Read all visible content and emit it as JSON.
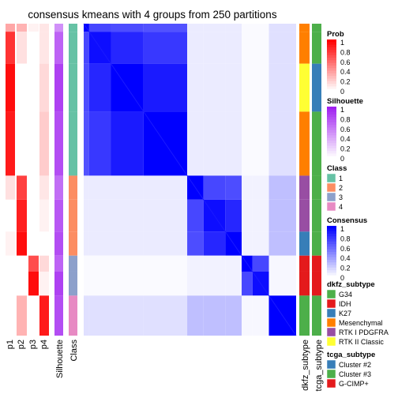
{
  "chart_data": {
    "type": "heatmap",
    "title": "consensus kmeans with 4 groups from 250 partitions",
    "row_groups": [
      {
        "class": "1",
        "rel_size": 19
      },
      {
        "class": "2",
        "rel_size": 10
      },
      {
        "class": "3",
        "rel_size": 5
      },
      {
        "class": "4",
        "rel_size": 5
      }
    ],
    "sub_blocks": [
      {
        "group": "1",
        "size": 1,
        "dkfz": "Mesenchymal",
        "tcga": "Cluster #3",
        "prob": [
          0.35,
          0.3,
          0.05,
          0.1
        ],
        "silhouette": 0.5
      },
      {
        "group": "1",
        "size": 4,
        "dkfz": "Mesenchymal",
        "tcga": "Cluster #3",
        "prob": [
          0.8,
          0.12,
          0.0,
          0.1
        ],
        "silhouette": 0.7
      },
      {
        "group": "1",
        "size": 6,
        "dkfz": "RTK II Classic",
        "tcga": "Cluster #2",
        "prob": [
          0.95,
          0.0,
          0.0,
          0.15
        ],
        "silhouette": 0.85
      },
      {
        "group": "1",
        "size": 8,
        "dkfz": "Mesenchymal",
        "tcga": "Cluster #3",
        "prob": [
          0.9,
          0.0,
          0.0,
          0.2
        ],
        "silhouette": 0.8
      },
      {
        "group": "2",
        "size": 3,
        "dkfz": "RTK I PDGFRA",
        "tcga": "Cluster #3",
        "prob": [
          0.12,
          0.75,
          0.0,
          0.1
        ],
        "silhouette": 0.65
      },
      {
        "group": "2",
        "size": 4,
        "dkfz": "RTK I PDGFRA",
        "tcga": "Cluster #3",
        "prob": [
          0.0,
          0.88,
          0.0,
          0.05
        ],
        "silhouette": 0.75
      },
      {
        "group": "2",
        "size": 3,
        "dkfz": "K27",
        "tcga": "Cluster #3",
        "prob": [
          0.05,
          0.95,
          0.0,
          0.0
        ],
        "silhouette": 0.8
      },
      {
        "group": "3",
        "size": 2,
        "dkfz": "IDH",
        "tcga": "G-CIMP+",
        "prob": [
          0.0,
          0.0,
          0.7,
          0.15
        ],
        "silhouette": 0.7
      },
      {
        "group": "3",
        "size": 3,
        "dkfz": "IDH",
        "tcga": "G-CIMP+",
        "prob": [
          0.0,
          0.0,
          0.95,
          0.05
        ],
        "silhouette": 0.85
      },
      {
        "group": "4",
        "size": 5,
        "dkfz": "G34",
        "tcga": "Cluster #3",
        "prob": [
          0.0,
          0.3,
          0.0,
          0.9
        ],
        "silhouette": 0.8
      }
    ],
    "within_consensus": [
      [
        1.0,
        0.72,
        0.7,
        0.68
      ],
      [
        0.72,
        0.95,
        0.85,
        0.78
      ],
      [
        0.7,
        0.85,
        1.0,
        0.9
      ],
      [
        0.68,
        0.78,
        0.9,
        1.0
      ]
    ],
    "between_consensus": {
      "1-2": 0.08,
      "1-3": 0.02,
      "1-4": 0.12,
      "2-3": 0.05,
      "2-4": 0.25,
      "3-4": 0.03
    },
    "annotation_labels": [
      "p1",
      "p2",
      "p3",
      "p4",
      "Silhouette",
      "Class",
      "dkfz_subtype",
      "tcga_subtype"
    ],
    "legends": {
      "prob": {
        "title": "Prob",
        "ticks": [
          "1",
          "0.8",
          "0.6",
          "0.4",
          "0.2",
          "0"
        ]
      },
      "silhouette": {
        "title": "Silhouette",
        "ticks": [
          "1",
          "0.8",
          "0.6",
          "0.4",
          "0.2",
          "0"
        ]
      },
      "class": {
        "title": "Class",
        "items": [
          "1",
          "2",
          "3",
          "4"
        ]
      },
      "consensus": {
        "title": "Consensus",
        "ticks": [
          "1",
          "0.8",
          "0.6",
          "0.4",
          "0.2",
          "0"
        ]
      },
      "dkfz_subtype": {
        "title": "dkfz_subtype",
        "items": [
          "G34",
          "IDH",
          "K27",
          "Mesenchymal",
          "RTK I PDGFRA",
          "RTK II Classic"
        ]
      },
      "tcga_subtype": {
        "title": "tcga_subtype",
        "items": [
          "Cluster #2",
          "Cluster #3",
          "G-CIMP+"
        ]
      }
    }
  },
  "colors": {
    "prob_high": "#ff0000",
    "silhouette_high": "#a020f0",
    "consensus_high": "#0000ff",
    "class": {
      "1": "#66c2a5",
      "2": "#fc8d62",
      "3": "#8da0cb",
      "4": "#e78ac3"
    },
    "dkfz": {
      "G34": "#4daf4a",
      "IDH": "#e41a1c",
      "K27": "#377eb8",
      "Mesenchymal": "#ff7f00",
      "RTK I PDGFRA": "#984ea3",
      "RTK II Classic": "#ffff33"
    },
    "tcga": {
      "Cluster #2": "#377eb8",
      "Cluster #3": "#4daf4a",
      "G-CIMP+": "#e41a1c"
    }
  }
}
